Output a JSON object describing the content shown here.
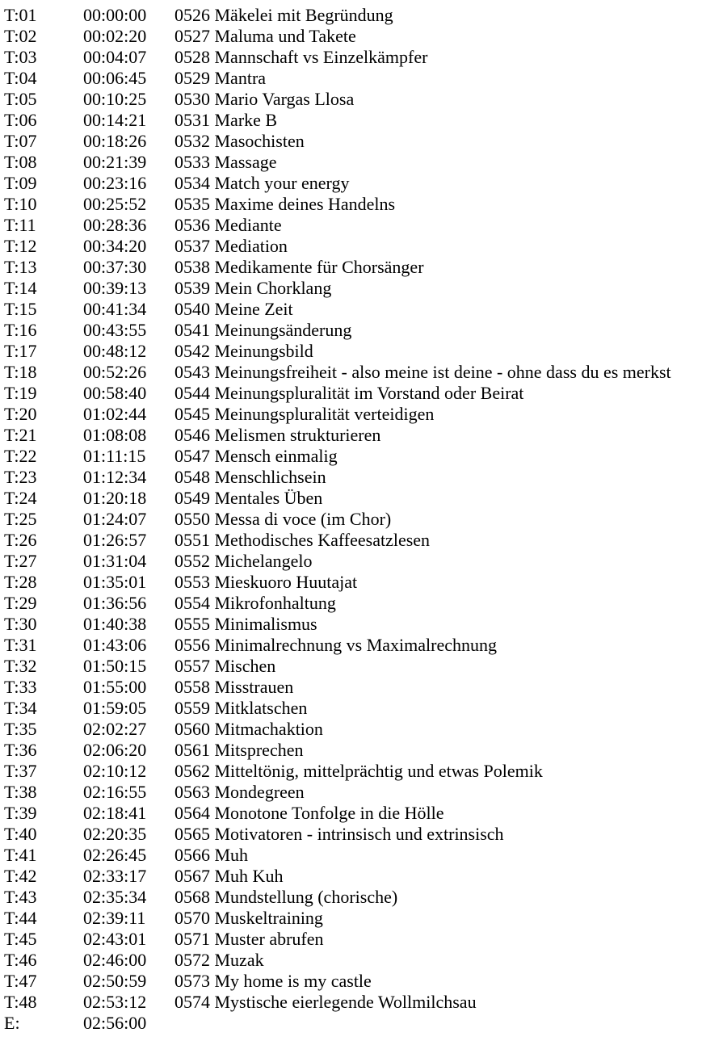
{
  "document": {
    "type": "tracklist-cue-sheet",
    "text_color": "#000000",
    "background_color": "#ffffff",
    "columns": [
      "track",
      "time",
      "title"
    ],
    "rows": [
      {
        "track": "T:01",
        "time": "00:00:00",
        "title": "0526 Mäkelei mit Begründung"
      },
      {
        "track": "T:02",
        "time": "00:02:20",
        "title": "0527 Maluma und Takete"
      },
      {
        "track": "T:03",
        "time": "00:04:07",
        "title": "0528 Mannschaft vs Einzelkämpfer"
      },
      {
        "track": "T:04",
        "time": "00:06:45",
        "title": "0529 Mantra"
      },
      {
        "track": "T:05",
        "time": "00:10:25",
        "title": "0530 Mario Vargas Llosa"
      },
      {
        "track": "T:06",
        "time": "00:14:21",
        "title": "0531 Marke B"
      },
      {
        "track": "T:07",
        "time": "00:18:26",
        "title": "0532 Masochisten"
      },
      {
        "track": "T:08",
        "time": "00:21:39",
        "title": "0533 Massage"
      },
      {
        "track": "T:09",
        "time": "00:23:16",
        "title": "0534 Match your energy"
      },
      {
        "track": "T:10",
        "time": "00:25:52",
        "title": "0535 Maxime deines Handelns"
      },
      {
        "track": "T:11",
        "time": "00:28:36",
        "title": "0536 Mediante"
      },
      {
        "track": "T:12",
        "time": "00:34:20",
        "title": "0537 Mediation"
      },
      {
        "track": "T:13",
        "time": "00:37:30",
        "title": "0538 Medikamente für Chorsänger"
      },
      {
        "track": "T:14",
        "time": "00:39:13",
        "title": "0539 Mein Chorklang"
      },
      {
        "track": "T:15",
        "time": "00:41:34",
        "title": "0540 Meine Zeit"
      },
      {
        "track": "T:16",
        "time": "00:43:55",
        "title": "0541 Meinungsänderung"
      },
      {
        "track": "T:17",
        "time": "00:48:12",
        "title": "0542 Meinungsbild"
      },
      {
        "track": "T:18",
        "time": "00:52:26",
        "title": "0543 Meinungsfreiheit - also meine ist deine - ohne dass du es merkst"
      },
      {
        "track": "T:19",
        "time": "00:58:40",
        "title": "0544 Meinungspluralität im Vorstand oder Beirat"
      },
      {
        "track": "T:20",
        "time": "01:02:44",
        "title": "0545 Meinungspluralität verteidigen"
      },
      {
        "track": "T:21",
        "time": "01:08:08",
        "title": "0546 Melismen strukturieren"
      },
      {
        "track": "T:22",
        "time": "01:11:15",
        "title": "0547 Mensch einmalig"
      },
      {
        "track": "T:23",
        "time": "01:12:34",
        "title": "0548 Menschlichsein"
      },
      {
        "track": "T:24",
        "time": "01:20:18",
        "title": "0549 Mentales Üben"
      },
      {
        "track": "T:25",
        "time": "01:24:07",
        "title": "0550 Messa di voce (im Chor)"
      },
      {
        "track": "T:26",
        "time": "01:26:57",
        "title": "0551 Methodisches Kaffeesatzlesen"
      },
      {
        "track": "T:27",
        "time": "01:31:04",
        "title": "0552 Michelangelo"
      },
      {
        "track": "T:28",
        "time": "01:35:01",
        "title": "0553 Mieskuoro Huutajat"
      },
      {
        "track": "T:29",
        "time": "01:36:56",
        "title": "0554 Mikrofonhaltung"
      },
      {
        "track": "T:30",
        "time": "01:40:38",
        "title": "0555 Minimalismus"
      },
      {
        "track": "T:31",
        "time": "01:43:06",
        "title": "0556 Minimalrechnung vs Maximalrechnung"
      },
      {
        "track": "T:32",
        "time": "01:50:15",
        "title": "0557 Mischen"
      },
      {
        "track": "T:33",
        "time": "01:55:00",
        "title": "0558 Misstrauen"
      },
      {
        "track": "T:34",
        "time": "01:59:05",
        "title": "0559 Mitklatschen"
      },
      {
        "track": "T:35",
        "time": "02:02:27",
        "title": "0560 Mitmachaktion"
      },
      {
        "track": "T:36",
        "time": "02:06:20",
        "title": "0561 Mitsprechen"
      },
      {
        "track": "T:37",
        "time": "02:10:12",
        "title": "0562 Mitteltönig, mittelprächtig und etwas Polemik"
      },
      {
        "track": "T:38",
        "time": "02:16:55",
        "title": "0563 Mondegreen"
      },
      {
        "track": "T:39",
        "time": "02:18:41",
        "title": "0564 Monotone Tonfolge in die Hölle"
      },
      {
        "track": "T:40",
        "time": "02:20:35",
        "title": "0565 Motivatoren - intrinsisch und extrinsisch"
      },
      {
        "track": "T:41",
        "time": "02:26:45",
        "title": "0566 Muh"
      },
      {
        "track": "T:42",
        "time": "02:33:17",
        "title": "0567 Muh Kuh"
      },
      {
        "track": "T:43",
        "time": "02:35:34",
        "title": "0568 Mundstellung (chorische)"
      },
      {
        "track": "T:44",
        "time": "02:39:11",
        "title": "0570 Muskeltraining"
      },
      {
        "track": "T:45",
        "time": "02:43:01",
        "title": "0571 Muster abrufen"
      },
      {
        "track": "T:46",
        "time": "02:46:00",
        "title": "0572 Muzak"
      },
      {
        "track": "T:47",
        "time": "02:50:59",
        "title": "0573 My home is my castle"
      },
      {
        "track": "T:48",
        "time": "02:53:12",
        "title": "0574 Mystische eierlegende Wollmilchsau"
      },
      {
        "track": "E:",
        "time": "02:56:00",
        "title": ""
      }
    ]
  }
}
